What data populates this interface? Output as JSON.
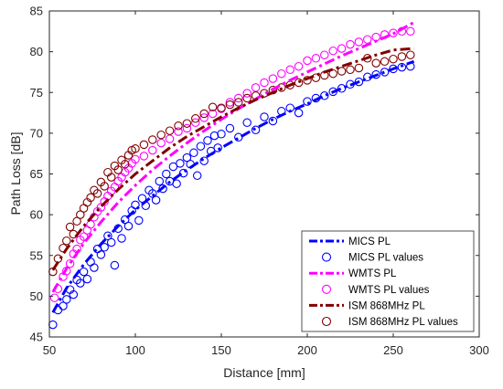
{
  "chart_data": {
    "type": "scatter",
    "title": "",
    "xlabel": "Distance [mm]",
    "ylabel": "Path Loss [dB]",
    "xlim": [
      50,
      300
    ],
    "ylim": [
      45,
      85
    ],
    "xticks": [
      50,
      100,
      150,
      200,
      250,
      300
    ],
    "yticks": [
      45,
      50,
      55,
      60,
      65,
      70,
      75,
      80,
      85
    ],
    "grid": false,
    "legend_position": "bottom-right",
    "fit_curves": [
      {
        "name": "MICS PL",
        "color": "#0000ff",
        "style": "dash-dot",
        "x": [
          52,
          60,
          70,
          80,
          90,
          100,
          110,
          120,
          130,
          140,
          150,
          160,
          170,
          180,
          190,
          200,
          210,
          220,
          230,
          240,
          250,
          262
        ],
        "y": [
          48.0,
          51.0,
          53.9,
          56.4,
          58.6,
          60.6,
          62.3,
          64.0,
          65.5,
          66.9,
          68.2,
          69.4,
          70.6,
          71.7,
          72.7,
          73.6,
          74.6,
          75.5,
          76.3,
          77.1,
          77.9,
          78.8
        ]
      },
      {
        "name": "WMTS PL",
        "color": "#ff00ff",
        "style": "dash-dot",
        "x": [
          52,
          60,
          70,
          80,
          90,
          100,
          110,
          120,
          130,
          140,
          150,
          160,
          170,
          180,
          190,
          200,
          210,
          220,
          230,
          240,
          250,
          262
        ],
        "y": [
          50.5,
          53.4,
          56.5,
          59.1,
          61.5,
          63.6,
          65.5,
          67.2,
          68.8,
          70.3,
          71.7,
          73.0,
          74.2,
          75.4,
          76.5,
          77.5,
          78.5,
          79.5,
          80.4,
          81.3,
          82.2,
          83.6
        ]
      },
      {
        "name": "ISM 868MHz PL",
        "color": "#800000",
        "style": "dash-dot",
        "x": [
          52,
          60,
          70,
          80,
          90,
          100,
          110,
          120,
          130,
          140,
          150,
          160,
          170,
          180,
          190,
          200,
          210,
          220,
          230,
          240,
          250,
          262
        ],
        "y": [
          53.2,
          55.8,
          58.6,
          61.0,
          63.1,
          65.0,
          66.6,
          68.2,
          69.6,
          70.8,
          72.0,
          73.1,
          74.1,
          75.0,
          75.9,
          76.7,
          77.5,
          78.2,
          78.9,
          79.6,
          80.2,
          80.4
        ]
      }
    ],
    "scatter_series": [
      {
        "name": "MICS PL values",
        "color": "#0000ff",
        "points": [
          [
            52,
            46.5
          ],
          [
            55,
            48.3
          ],
          [
            58,
            48.8
          ],
          [
            60,
            49.6
          ],
          [
            62,
            50.8
          ],
          [
            64,
            50.2
          ],
          [
            66,
            52.0
          ],
          [
            68,
            51.6
          ],
          [
            70,
            53.0
          ],
          [
            72,
            52.1
          ],
          [
            74,
            54.2
          ],
          [
            76,
            53.5
          ],
          [
            78,
            55.8
          ],
          [
            80,
            55.1
          ],
          [
            82,
            56.0
          ],
          [
            84,
            57.4
          ],
          [
            86,
            56.6
          ],
          [
            88,
            53.8
          ],
          [
            90,
            58.3
          ],
          [
            92,
            57.1
          ],
          [
            94,
            59.4
          ],
          [
            96,
            58.6
          ],
          [
            98,
            60.5
          ],
          [
            100,
            61.2
          ],
          [
            102,
            59.3
          ],
          [
            104,
            62.0
          ],
          [
            106,
            61.1
          ],
          [
            108,
            63.0
          ],
          [
            110,
            62.6
          ],
          [
            112,
            61.8
          ],
          [
            114,
            64.1
          ],
          [
            116,
            63.2
          ],
          [
            118,
            65.0
          ],
          [
            120,
            64.1
          ],
          [
            122,
            65.9
          ],
          [
            124,
            63.8
          ],
          [
            126,
            66.3
          ],
          [
            128,
            65.1
          ],
          [
            130,
            67.0
          ],
          [
            132,
            66.2
          ],
          [
            134,
            67.6
          ],
          [
            136,
            64.8
          ],
          [
            138,
            68.4
          ],
          [
            140,
            66.6
          ],
          [
            142,
            69.1
          ],
          [
            144,
            67.8
          ],
          [
            146,
            69.7
          ],
          [
            148,
            68.2
          ],
          [
            150,
            69.9
          ],
          [
            155,
            70.6
          ],
          [
            160,
            69.5
          ],
          [
            165,
            71.3
          ],
          [
            170,
            70.4
          ],
          [
            175,
            72.0
          ],
          [
            180,
            71.5
          ],
          [
            185,
            72.7
          ],
          [
            190,
            73.1
          ],
          [
            195,
            72.5
          ],
          [
            200,
            73.9
          ],
          [
            205,
            74.3
          ],
          [
            210,
            74.6
          ],
          [
            215,
            75.1
          ],
          [
            220,
            75.5
          ],
          [
            225,
            76.0
          ],
          [
            230,
            76.3
          ],
          [
            235,
            76.9
          ],
          [
            240,
            77.2
          ],
          [
            245,
            77.5
          ],
          [
            250,
            77.9
          ],
          [
            255,
            78.1
          ],
          [
            260,
            78.2
          ]
        ]
      },
      {
        "name": "WMTS PL values",
        "color": "#ff00ff",
        "points": [
          [
            53,
            49.8
          ],
          [
            55,
            50.9
          ],
          [
            58,
            52.4
          ],
          [
            60,
            53.1
          ],
          [
            62,
            54.0
          ],
          [
            64,
            55.2
          ],
          [
            66,
            55.8
          ],
          [
            68,
            56.9
          ],
          [
            70,
            57.3
          ],
          [
            72,
            58.1
          ],
          [
            74,
            58.8
          ],
          [
            76,
            59.7
          ],
          [
            78,
            60.4
          ],
          [
            80,
            60.9
          ],
          [
            82,
            61.6
          ],
          [
            84,
            62.3
          ],
          [
            86,
            62.9
          ],
          [
            88,
            63.4
          ],
          [
            90,
            64.1
          ],
          [
            92,
            64.6
          ],
          [
            94,
            65.2
          ],
          [
            96,
            65.7
          ],
          [
            98,
            66.3
          ],
          [
            100,
            66.8
          ],
          [
            105,
            67.2
          ],
          [
            110,
            67.9
          ],
          [
            115,
            68.8
          ],
          [
            120,
            69.3
          ],
          [
            125,
            70.2
          ],
          [
            130,
            70.6
          ],
          [
            135,
            71.3
          ],
          [
            140,
            71.9
          ],
          [
            145,
            72.4
          ],
          [
            150,
            73.0
          ],
          [
            155,
            73.8
          ],
          [
            160,
            74.3
          ],
          [
            165,
            74.9
          ],
          [
            170,
            75.6
          ],
          [
            175,
            76.2
          ],
          [
            180,
            76.7
          ],
          [
            185,
            77.3
          ],
          [
            190,
            77.8
          ],
          [
            195,
            78.2
          ],
          [
            200,
            78.9
          ],
          [
            205,
            79.2
          ],
          [
            210,
            79.6
          ],
          [
            215,
            80.1
          ],
          [
            220,
            80.4
          ],
          [
            225,
            80.9
          ],
          [
            230,
            81.2
          ],
          [
            235,
            81.5
          ],
          [
            240,
            81.8
          ],
          [
            245,
            82.1
          ],
          [
            250,
            82.3
          ],
          [
            255,
            82.5
          ],
          [
            260,
            82.5
          ]
        ]
      },
      {
        "name": "ISM 868MHz PL values",
        "color": "#800000",
        "points": [
          [
            52,
            53.0
          ],
          [
            55,
            54.6
          ],
          [
            58,
            55.9
          ],
          [
            60,
            56.8
          ],
          [
            62,
            58.5
          ],
          [
            64,
            57.6
          ],
          [
            66,
            59.2
          ],
          [
            68,
            60.0
          ],
          [
            70,
            60.8
          ],
          [
            72,
            61.5
          ],
          [
            74,
            62.1
          ],
          [
            76,
            63.0
          ],
          [
            78,
            62.6
          ],
          [
            80,
            64.0
          ],
          [
            82,
            63.5
          ],
          [
            84,
            65.2
          ],
          [
            86,
            64.6
          ],
          [
            88,
            66.0
          ],
          [
            90,
            65.5
          ],
          [
            92,
            66.7
          ],
          [
            94,
            66.2
          ],
          [
            96,
            67.3
          ],
          [
            98,
            67.9
          ],
          [
            100,
            68.1
          ],
          [
            105,
            68.6
          ],
          [
            110,
            69.2
          ],
          [
            115,
            69.8
          ],
          [
            120,
            70.3
          ],
          [
            125,
            70.9
          ],
          [
            130,
            71.2
          ],
          [
            135,
            71.8
          ],
          [
            140,
            72.4
          ],
          [
            145,
            73.2
          ],
          [
            150,
            73.1
          ],
          [
            155,
            73.5
          ],
          [
            160,
            73.8
          ],
          [
            165,
            74.3
          ],
          [
            170,
            74.6
          ],
          [
            175,
            74.9
          ],
          [
            180,
            75.3
          ],
          [
            185,
            75.6
          ],
          [
            190,
            75.9
          ],
          [
            195,
            76.2
          ],
          [
            200,
            76.5
          ],
          [
            205,
            76.8
          ],
          [
            210,
            77.1
          ],
          [
            215,
            77.3
          ],
          [
            220,
            77.6
          ],
          [
            225,
            77.8
          ],
          [
            230,
            78.0
          ],
          [
            235,
            79.2
          ],
          [
            240,
            78.6
          ],
          [
            245,
            78.8
          ],
          [
            250,
            79.1
          ],
          [
            255,
            79.4
          ],
          [
            260,
            79.6
          ]
        ]
      }
    ],
    "legend": [
      {
        "label": "MICS PL",
        "kind": "line",
        "color": "#0000ff"
      },
      {
        "label": "MICS PL values",
        "kind": "marker",
        "color": "#0000ff"
      },
      {
        "label": "WMTS PL",
        "kind": "line",
        "color": "#ff00ff"
      },
      {
        "label": "WMTS PL values",
        "kind": "marker",
        "color": "#ff00ff"
      },
      {
        "label": "ISM 868MHz PL",
        "kind": "line",
        "color": "#800000"
      },
      {
        "label": "ISM 868MHz PL values",
        "kind": "marker",
        "color": "#800000"
      }
    ]
  }
}
